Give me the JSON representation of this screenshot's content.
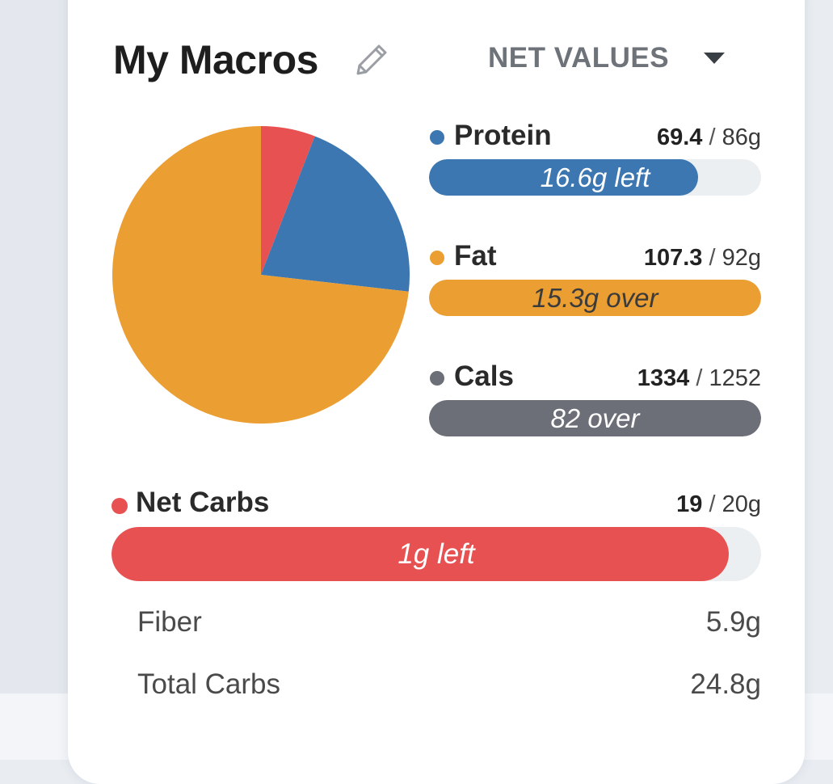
{
  "header": {
    "title": "My Macros",
    "view_mode": "NET VALUES"
  },
  "icons": {
    "edit": "pencil-icon",
    "dropdown": "caret-down-icon"
  },
  "macros": {
    "protein": {
      "name": "Protein",
      "current": "69.4",
      "sep": "/",
      "goal": "86g",
      "bar_label": "16.6g left",
      "progress": 0.81,
      "color": "#3c77b1",
      "label_color": "#ffffff"
    },
    "fat": {
      "name": "Fat",
      "current": "107.3",
      "sep": "/",
      "goal": "92g",
      "bar_label": "15.3g over",
      "progress": 1.0,
      "color": "#eb9e32",
      "label_color": "#3b3b3b"
    },
    "cals": {
      "name": "Cals",
      "current": "1334",
      "sep": "/",
      "goal": "1252",
      "bar_label": "82 over",
      "progress": 1.0,
      "color": "#6d6f78",
      "label_color": "#ffffff"
    },
    "net_carbs": {
      "name": "Net Carbs",
      "current": "19",
      "sep": "/",
      "goal": "20g",
      "bar_label": "1g left",
      "progress": 0.95,
      "color": "#e85151",
      "label_color": "#ffffff"
    }
  },
  "details": {
    "fiber": {
      "label": "Fiber",
      "value": "5.9g"
    },
    "total_carbs": {
      "label": "Total Carbs",
      "value": "24.8g"
    }
  },
  "chart_data": {
    "type": "pie",
    "categories": [
      "Net Carbs",
      "Protein",
      "Fat"
    ],
    "values": [
      5.9,
      20.9,
      73.2
    ],
    "colors": [
      "#e85151",
      "#3c77b1",
      "#eb9e32"
    ],
    "start_angle_deg": 0
  }
}
